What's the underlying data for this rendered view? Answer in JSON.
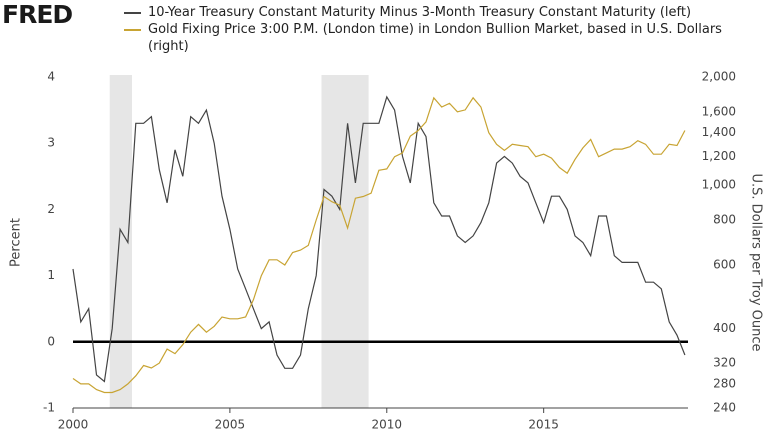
{
  "logo": "FRED",
  "chart_data": {
    "type": "line",
    "xlim": [
      2000,
      2019.6
    ],
    "xticks": [
      2000,
      2005,
      2010,
      2015
    ],
    "ylim": [
      -1,
      4
    ],
    "yticks": [
      -1,
      0,
      1,
      2,
      3,
      4
    ],
    "y_label": "Percent",
    "y2lim": [
      240,
      2000
    ],
    "y2log": true,
    "y2ticks": [
      240,
      280,
      320,
      400,
      600,
      800,
      {
        "value": 1000,
        "label": "1,000"
      },
      {
        "value": 1200,
        "label": "1,200"
      },
      {
        "value": 1400,
        "label": "1,400"
      },
      {
        "value": 1600,
        "label": "1,600"
      },
      {
        "value": 2000,
        "label": "2,000"
      }
    ],
    "y2_label": "U.S. Dollars per Troy Ounce",
    "zero_line": true,
    "shaded_periods": [
      [
        2001.17,
        2001.88
      ],
      [
        2007.92,
        2009.42
      ]
    ],
    "shade_color": "#e6e6e6",
    "x": [
      2000,
      2000.25,
      2000.5,
      2000.75,
      2001,
      2001.25,
      2001.5,
      2001.75,
      2002,
      2002.25,
      2002.5,
      2002.75,
      2003,
      2003.25,
      2003.5,
      2003.75,
      2004,
      2004.25,
      2004.5,
      2004.75,
      2005,
      2005.25,
      2005.5,
      2005.75,
      2006,
      2006.25,
      2006.5,
      2006.75,
      2007,
      2007.25,
      2007.5,
      2007.75,
      2008,
      2008.25,
      2008.5,
      2008.75,
      2009,
      2009.25,
      2009.5,
      2009.75,
      2010,
      2010.25,
      2010.5,
      2010.75,
      2011,
      2011.25,
      2011.5,
      2011.75,
      2012,
      2012.25,
      2012.5,
      2012.75,
      2013,
      2013.25,
      2013.5,
      2013.75,
      2014,
      2014.25,
      2014.5,
      2014.75,
      2015,
      2015.25,
      2015.5,
      2015.75,
      2016,
      2016.25,
      2016.5,
      2016.75,
      2017,
      2017.25,
      2017.5,
      2017.75,
      2018,
      2018.25,
      2018.5,
      2018.75,
      2019,
      2019.25,
      2019.5
    ],
    "series": [
      {
        "name": "10-Year Treasury Constant Maturity Minus 3-Month Treasury Constant Maturity (left)",
        "color": "#444444",
        "values": [
          1.1,
          0.3,
          0.5,
          -0.5,
          -0.6,
          0.2,
          1.7,
          1.5,
          3.3,
          3.3,
          3.4,
          2.6,
          2.1,
          2.9,
          2.5,
          3.4,
          3.3,
          3.5,
          3.0,
          2.2,
          1.7,
          1.1,
          0.8,
          0.5,
          0.2,
          0.3,
          -0.2,
          -0.4,
          -0.4,
          -0.2,
          0.5,
          1.0,
          2.3,
          2.2,
          2.0,
          3.3,
          2.4,
          3.3,
          3.3,
          3.3,
          3.7,
          3.5,
          2.8,
          2.4,
          3.3,
          3.1,
          2.1,
          1.9,
          1.9,
          1.6,
          1.5,
          1.6,
          1.8,
          2.1,
          2.7,
          2.8,
          2.7,
          2.5,
          2.4,
          2.1,
          1.8,
          2.2,
          2.2,
          2.0,
          1.6,
          1.5,
          1.3,
          1.9,
          1.9,
          1.3,
          1.2,
          1.2,
          1.2,
          0.9,
          0.9,
          0.8,
          0.3,
          0.1,
          -0.2
        ]
      },
      {
        "name": "Gold Fixing Price 3:00 P.M. (London time) in London Bullion Market, based in U.S. Dollars (right)",
        "color": "#c8a433",
        "axis": "y2",
        "values": [
          290,
          280,
          280,
          270,
          265,
          265,
          270,
          280,
          295,
          315,
          310,
          320,
          350,
          340,
          360,
          390,
          410,
          390,
          405,
          430,
          425,
          425,
          430,
          480,
          560,
          620,
          620,
          600,
          650,
          660,
          680,
          800,
          930,
          900,
          880,
          760,
          920,
          930,
          950,
          1100,
          1110,
          1200,
          1230,
          1370,
          1420,
          1500,
          1750,
          1650,
          1690,
          1600,
          1620,
          1750,
          1650,
          1400,
          1300,
          1250,
          1300,
          1290,
          1280,
          1200,
          1220,
          1190,
          1120,
          1080,
          1180,
          1270,
          1340,
          1200,
          1230,
          1260,
          1260,
          1280,
          1330,
          1300,
          1220,
          1220,
          1300,
          1290,
          1420
        ]
      }
    ]
  }
}
